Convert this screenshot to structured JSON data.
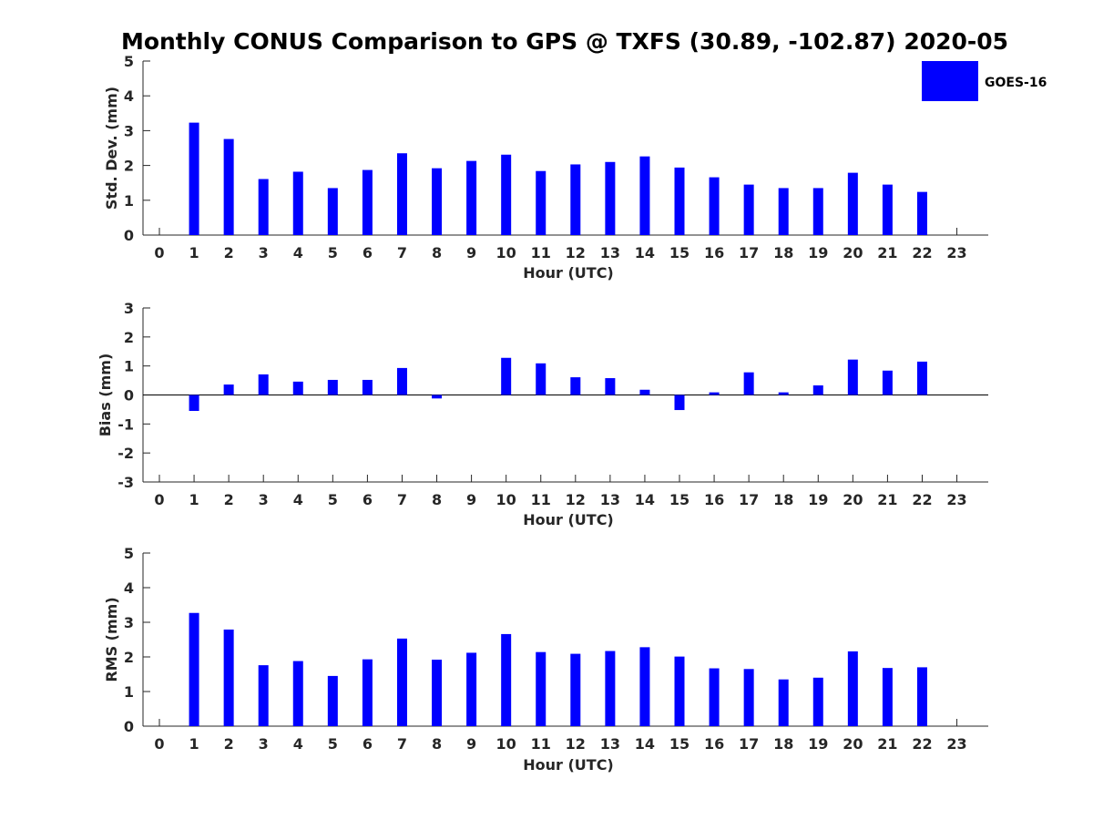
{
  "title": "Monthly CONUS Comparison to GPS @ TXFS (30.89, -102.87) 2020-05",
  "legend": {
    "label": "GOES-16",
    "color": "#0000ff",
    "placement": "top-right"
  },
  "chart_data": [
    {
      "type": "bar",
      "name": "std-dev",
      "xlabel": "Hour (UTC)",
      "ylabel": "Std. Dev. (mm)",
      "ylim": [
        0,
        5
      ],
      "yticks": [
        0,
        1,
        2,
        3,
        4,
        5
      ],
      "categories": [
        0,
        1,
        2,
        3,
        4,
        5,
        6,
        7,
        8,
        9,
        10,
        11,
        12,
        13,
        14,
        15,
        16,
        17,
        18,
        19,
        20,
        21,
        22,
        23
      ],
      "values": [
        null,
        3.23,
        2.76,
        1.61,
        1.82,
        1.35,
        1.87,
        2.35,
        1.92,
        2.13,
        2.31,
        1.84,
        2.03,
        2.1,
        2.26,
        1.94,
        1.66,
        1.45,
        1.35,
        1.35,
        1.79,
        1.45,
        1.24,
        null
      ],
      "color": "#0000ff",
      "grid": false
    },
    {
      "type": "bar",
      "name": "bias",
      "xlabel": "Hour (UTC)",
      "ylabel": "Bias (mm)",
      "ylim": [
        -3,
        3
      ],
      "yticks": [
        -3,
        -2,
        -1,
        0,
        1,
        2,
        3
      ],
      "categories": [
        0,
        1,
        2,
        3,
        4,
        5,
        6,
        7,
        8,
        9,
        10,
        11,
        12,
        13,
        14,
        15,
        16,
        17,
        18,
        19,
        20,
        21,
        22,
        23
      ],
      "values": [
        null,
        -0.55,
        0.36,
        0.71,
        0.46,
        0.52,
        0.52,
        0.93,
        -0.12,
        null,
        1.28,
        1.09,
        0.61,
        0.58,
        0.18,
        -0.52,
        0.09,
        0.78,
        0.09,
        0.33,
        1.22,
        0.84,
        1.15,
        null
      ],
      "color": "#0000ff",
      "zero_line": true,
      "grid": false
    },
    {
      "type": "bar",
      "name": "rms",
      "xlabel": "Hour (UTC)",
      "ylabel": "RMS (mm)",
      "ylim": [
        0,
        5
      ],
      "yticks": [
        0,
        1,
        2,
        3,
        4,
        5
      ],
      "categories": [
        0,
        1,
        2,
        3,
        4,
        5,
        6,
        7,
        8,
        9,
        10,
        11,
        12,
        13,
        14,
        15,
        16,
        17,
        18,
        19,
        20,
        21,
        22,
        23
      ],
      "values": [
        null,
        3.27,
        2.79,
        1.76,
        1.88,
        1.45,
        1.93,
        2.53,
        1.92,
        2.12,
        2.66,
        2.14,
        2.09,
        2.17,
        2.28,
        2.01,
        1.67,
        1.65,
        1.35,
        1.4,
        2.16,
        1.68,
        1.7,
        null
      ],
      "color": "#0000ff",
      "grid": false
    }
  ]
}
